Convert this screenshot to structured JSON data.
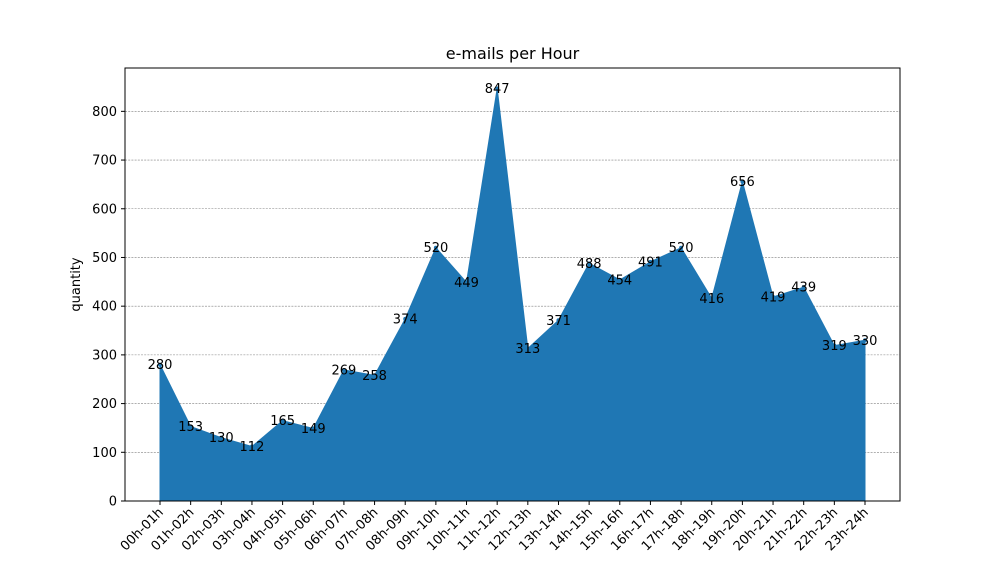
{
  "chart_data": {
    "type": "area",
    "title": "e-mails per Hour",
    "xlabel": "",
    "ylabel": "quantity",
    "categories": [
      "00h-01h",
      "01h-02h",
      "02h-03h",
      "03h-04h",
      "04h-05h",
      "05h-06h",
      "06h-07h",
      "07h-08h",
      "08h-09h",
      "09h-10h",
      "10h-11h",
      "11h-12h",
      "12h-13h",
      "13h-14h",
      "14h-15h",
      "15h-16h",
      "16h-17h",
      "17h-18h",
      "18h-19h",
      "19h-20h",
      "20h-21h",
      "21h-22h",
      "22h-23h",
      "23h-24h"
    ],
    "values": [
      280,
      153,
      130,
      112,
      165,
      149,
      269,
      258,
      374,
      520,
      449,
      847,
      313,
      371,
      488,
      454,
      491,
      520,
      416,
      656,
      419,
      439,
      319,
      330
    ],
    "yticks": [
      0,
      100,
      200,
      300,
      400,
      500,
      600,
      700,
      800
    ],
    "ylim": [
      0,
      889
    ],
    "grid": "y-dashed",
    "color": "#1f77b4",
    "legend": "none"
  }
}
